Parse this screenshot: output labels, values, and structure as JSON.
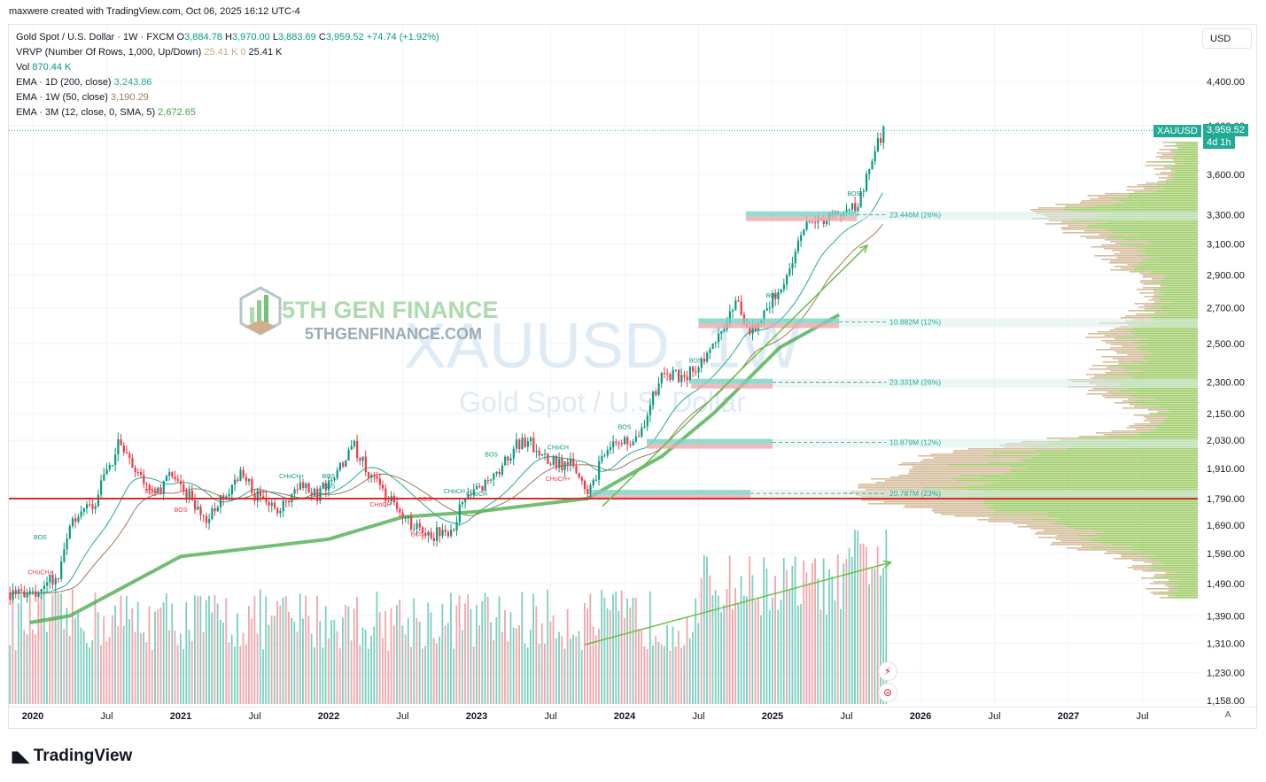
{
  "header": {
    "credit": "maxwere created with TradingView.com, Oct 06, 2025 16:12 UTC-4"
  },
  "legend": {
    "symbol_line": {
      "name": "Gold Spot / U.S. Dollar · 1W · FXCM",
      "o_label": "O",
      "o": "3,884.78",
      "h_label": "H",
      "h": "3,970.00",
      "l_label": "L",
      "l": "3,883.69",
      "c_label": "C",
      "c": "3,959.52",
      "change": "+74.74 (+1.92%)"
    },
    "vrvp": {
      "label": "VRVP (Number Of Rows, 1,000, Up/Down)",
      "v1": "25.41 K",
      "v2": "0",
      "v3": "25.41 K"
    },
    "vol": {
      "label": "Vol",
      "value": "870.44 K"
    },
    "ema1": {
      "label": "EMA · 1D (200, close)",
      "value": "3,243.86"
    },
    "ema2": {
      "label": "EMA · 1W (50, close)",
      "value": "3,190.29"
    },
    "ema3": {
      "label": "EMA · 3M (12, close, 0, SMA, 5)",
      "value": "2,672.65"
    }
  },
  "controls": {
    "currency": "USD",
    "auto": "A"
  },
  "watermark": {
    "brand": "5TH GEN FINANCE",
    "site": "5THGENFINANCE.COM",
    "symbol": "XAUUSD, 1W",
    "desc": "Gold Spot / U.S. Dollar"
  },
  "price_tag": {
    "symbol": "XAUUSD",
    "price": "3,959.52",
    "countdown": "4d 1h"
  },
  "footer": {
    "brand": "TradingView"
  },
  "colors": {
    "up": "#089981",
    "down": "#f23645",
    "ema_green": "#4caf50",
    "support_line": "#d32f2f",
    "tag_bg": "#22ab94"
  },
  "chart_data": {
    "type": "candlestick",
    "y_axis": {
      "scale": "log",
      "ticks": [
        "4,400.00",
        "4,000.00",
        "3,600.00",
        "3,300.00",
        "3,100.00",
        "2,900.00",
        "2,700.00",
        "2,500.00",
        "2,300.00",
        "2,150.00",
        "2,030.00",
        "1,910.00",
        "1,790.00",
        "1,690.00",
        "1,590.00",
        "1,490.00",
        "1,390.00",
        "1,310.00",
        "1,230.00",
        "1,158.00"
      ]
    },
    "x_axis": {
      "ticks": [
        "2020",
        "Jul",
        "2021",
        "Jul",
        "2022",
        "Jul",
        "2023",
        "Jul",
        "2024",
        "Jul",
        "2025",
        "Jul",
        "2026",
        "Jul",
        "2027",
        "Jul"
      ]
    },
    "price_path": [
      [
        "2020-01",
        1460
      ],
      [
        "2020-03",
        1520
      ],
      [
        "2020-04",
        1700
      ],
      [
        "2020-06",
        1780
      ],
      [
        "2020-08",
        2030
      ],
      [
        "2020-09",
        1900
      ],
      [
        "2020-11",
        1800
      ],
      [
        "2020-12",
        1880
      ],
      [
        "2021-01",
        1840
      ],
      [
        "2021-03",
        1700
      ],
      [
        "2021-04",
        1780
      ],
      [
        "2021-06",
        1890
      ],
      [
        "2021-07",
        1800
      ],
      [
        "2021-09",
        1750
      ],
      [
        "2021-11",
        1850
      ],
      [
        "2021-12",
        1800
      ],
      [
        "2022-03",
        2000
      ],
      [
        "2022-05",
        1830
      ],
      [
        "2022-07",
        1720
      ],
      [
        "2022-09",
        1650
      ],
      [
        "2022-11",
        1680
      ],
      [
        "2022-12",
        1800
      ],
      [
        "2023-02",
        1850
      ],
      [
        "2023-04",
        2000
      ],
      [
        "2023-05",
        2030
      ],
      [
        "2023-07",
        1940
      ],
      [
        "2023-09",
        1920
      ],
      [
        "2023-10",
        1820
      ],
      [
        "2023-12",
        2050
      ],
      [
        "2024-02",
        2020
      ],
      [
        "2024-03",
        2200
      ],
      [
        "2024-04",
        2330
      ],
      [
        "2024-06",
        2330
      ],
      [
        "2024-07",
        2400
      ],
      [
        "2024-09",
        2600
      ],
      [
        "2024-10",
        2750
      ],
      [
        "2024-11",
        2580
      ],
      [
        "2024-12",
        2620
      ],
      [
        "2025-02",
        2900
      ],
      [
        "2025-04",
        3300
      ],
      [
        "2025-05",
        3250
      ],
      [
        "2025-06",
        3350
      ],
      [
        "2025-07",
        3320
      ],
      [
        "2025-08",
        3400
      ],
      [
        "2025-09",
        3750
      ],
      [
        "2025-10",
        3959.52
      ]
    ],
    "horizontal_line": 1790,
    "volume_profile_labels": [
      "23.446M (26%)",
      "10.882M (12%)",
      "23.331M (26%)",
      "10.879M (12%)",
      "20.787M (23%)"
    ],
    "volume_profile_levels": [
      3300,
      2620,
      2300,
      2020,
      1810
    ],
    "structure_labels": [
      "BOS",
      "BOS",
      "BOS",
      "BOS",
      "BOS",
      "BOS",
      "BOS",
      "BOS",
      "BOS",
      "BOS",
      "BOS",
      "BOS",
      "CHoCH+",
      "CHoCH+",
      "CHoCH",
      "CHoCH",
      "CHoCH",
      "CHoCH+",
      "CHoCH"
    ]
  }
}
